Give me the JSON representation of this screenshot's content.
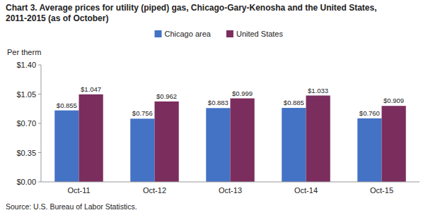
{
  "chart_data": {
    "type": "bar",
    "title": "Chart 3. Average prices for utility (piped) gas, Chicago-Gary-Kenosha  and the United States,\n2011-2015  (as of October)",
    "y_label": "Per therm",
    "source": "Source: U.S. Bureau of Labor Statistics.",
    "categories": [
      "Oct-11",
      "Oct-12",
      "Oct-13",
      "Oct-14",
      "Oct-15"
    ],
    "series": [
      {
        "name": "Chicago area",
        "color": "#4472C4",
        "values": [
          0.855,
          0.756,
          0.883,
          0.885,
          0.76
        ],
        "value_labels": [
          "$0.855",
          "$0.756",
          "$0.883",
          "$0.885",
          "$0.760"
        ]
      },
      {
        "name": "United States",
        "color": "#7B2D5E",
        "values": [
          1.047,
          0.962,
          0.999,
          1.033,
          0.909
        ],
        "value_labels": [
          "$1.047",
          "$0.962",
          "$0.999",
          "$1.033",
          "$0.909"
        ]
      }
    ],
    "ylim": [
      0,
      1.4
    ],
    "yticks": [
      {
        "value": 0.0,
        "label": "$0.00"
      },
      {
        "value": 0.35,
        "label": "$0.35"
      },
      {
        "value": 0.7,
        "label": "$0.70"
      },
      {
        "value": 1.05,
        "label": "$1.05"
      },
      {
        "value": 1.4,
        "label": "$1.40"
      }
    ],
    "grid": false,
    "legend": "top",
    "data_labels": true
  }
}
